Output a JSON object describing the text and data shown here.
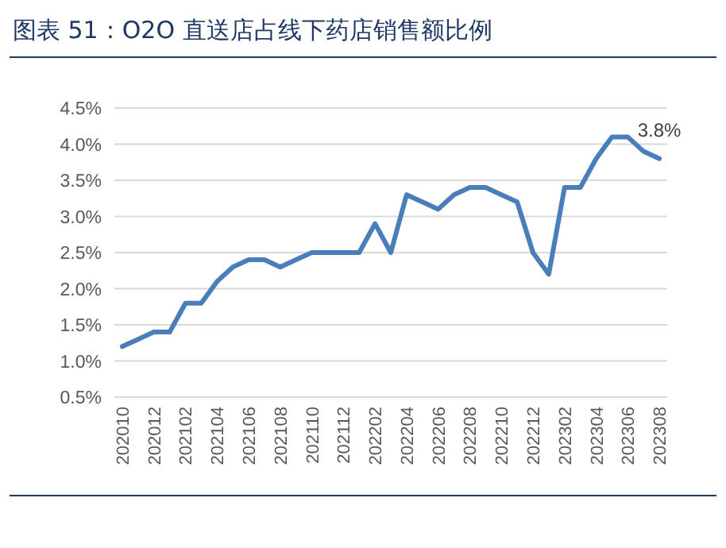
{
  "chart_data": {
    "type": "line",
    "title": "图表 51：O2O 直送店占线下药店销售额比例",
    "categories": [
      "202010",
      null,
      "202012",
      null,
      "202102",
      null,
      "202104",
      null,
      "202106",
      null,
      "202108",
      null,
      "202110",
      null,
      "202112",
      null,
      "202202",
      null,
      "202204",
      null,
      "202206",
      null,
      "202208",
      null,
      "202210",
      null,
      "202212",
      null,
      "202302",
      null,
      "202304",
      null,
      "202306",
      null,
      "202308"
    ],
    "series": [
      {
        "color": "#4a7ebb",
        "values": [
          1.2,
          1.3,
          1.4,
          1.4,
          1.8,
          1.8,
          2.1,
          2.3,
          2.4,
          2.4,
          2.3,
          2.4,
          2.5,
          2.5,
          2.5,
          2.5,
          2.9,
          2.5,
          3.3,
          3.2,
          3.1,
          3.3,
          3.4,
          3.4,
          3.3,
          3.2,
          2.5,
          2.2,
          3.4,
          3.4,
          3.8,
          4.1,
          4.1,
          3.9,
          3.8
        ]
      }
    ],
    "ylim": [
      0.5,
      4.5
    ],
    "yticks": [
      {
        "value": 0.5,
        "label": "0.5%"
      },
      {
        "value": 1.0,
        "label": "1.0%"
      },
      {
        "value": 1.5,
        "label": "1.5%"
      },
      {
        "value": 2.0,
        "label": "2.0%"
      },
      {
        "value": 2.5,
        "label": "2.5%"
      },
      {
        "value": 3.0,
        "label": "3.0%"
      },
      {
        "value": 3.5,
        "label": "3.5%"
      },
      {
        "value": 4.0,
        "label": "4.0%"
      },
      {
        "value": 4.5,
        "label": "4.5%"
      }
    ],
    "annotations": [
      {
        "text": "3.8%",
        "x": "202308",
        "y": 3.8
      }
    ],
    "grid": "y",
    "marker": "none",
    "line_style": "solid"
  }
}
